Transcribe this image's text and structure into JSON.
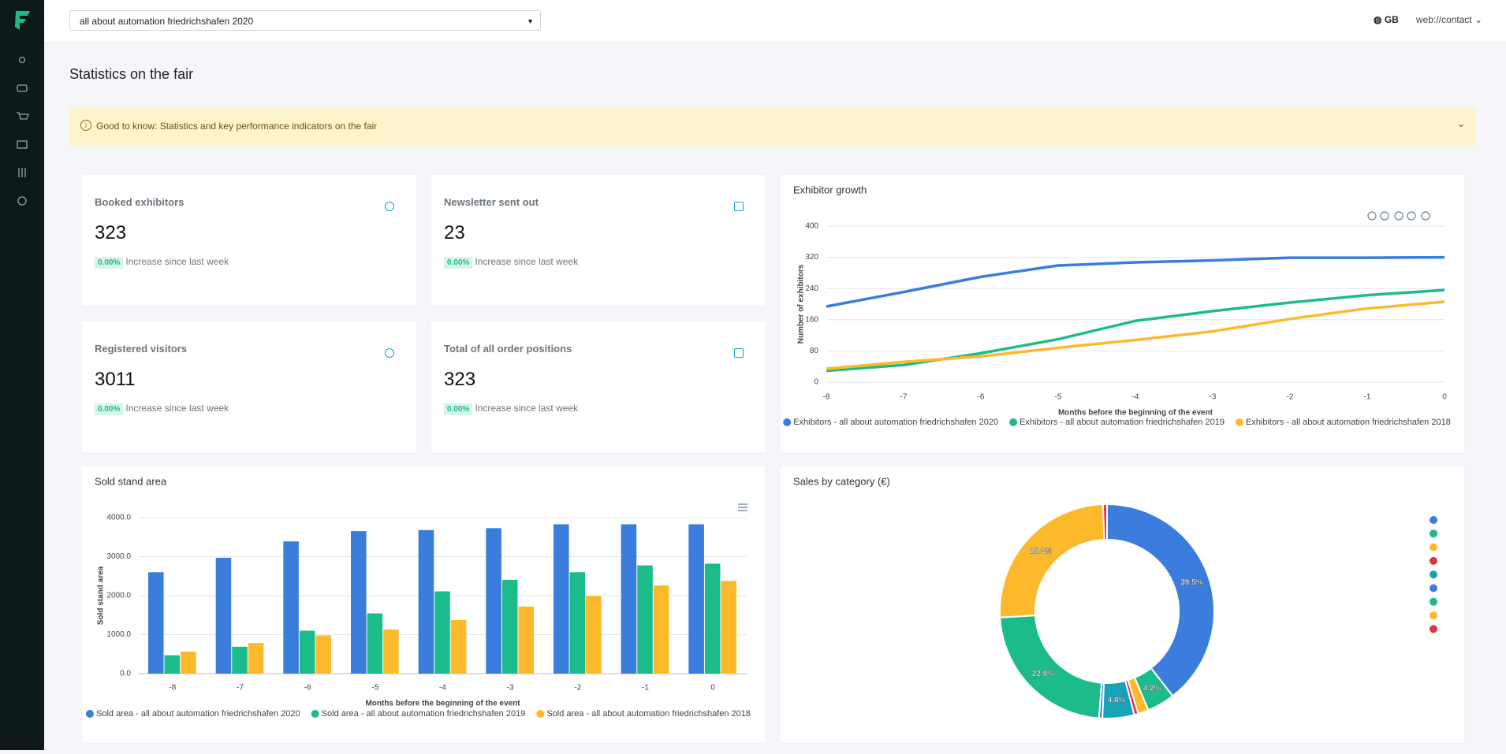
{
  "header": {
    "event_select": "all about automation friedrichshafen 2020",
    "language": "GB",
    "user": "web://contact"
  },
  "page_title": "Statistics on the fair",
  "notice": "Good to know: Statistics and key performance indicators on the fair",
  "kpis": [
    {
      "label": "Booked exhibitors",
      "value": 323,
      "badge": "0.00%",
      "caption": "Increase since last week"
    },
    {
      "label": "Newsletter sent out",
      "value": 23,
      "badge": "0.00%",
      "caption": "Increase since last week"
    },
    {
      "label": "Registered visitors",
      "value": 3011,
      "badge": "0.00%",
      "caption": "Increase since last week"
    },
    {
      "label": "Total of all order positions",
      "value": 323,
      "badge": "0.00%",
      "caption": "Increase since last week"
    }
  ],
  "chart_data": [
    {
      "type": "line",
      "title": "Exhibitor growth",
      "x_label": "Months before the beginning of the event",
      "y_label": "Number of exhibitors",
      "x": [
        -8,
        -7,
        -6,
        -5,
        -4,
        -3,
        -2,
        -1,
        0
      ],
      "xlim": [
        -8,
        0
      ],
      "xticks": [
        -8,
        -7,
        -6,
        -5,
        -4,
        -3,
        -2,
        -1,
        0
      ],
      "ylim": [
        0,
        400
      ],
      "yticks": [
        0,
        80,
        160,
        240,
        320,
        400
      ],
      "grid": true,
      "series": [
        {
          "name": "Exhibitors - all about automation friedrichshafen 2020",
          "color": "#3b7ddd",
          "values": [
            194,
            231,
            270,
            299,
            307,
            312,
            319,
            319,
            320
          ]
        },
        {
          "name": "Exhibitors - all about automation friedrichshafen 2019",
          "color": "#1cbb8c",
          "values": [
            29,
            44,
            74,
            110,
            157,
            182,
            204,
            223,
            236
          ]
        },
        {
          "name": "Exhibitors - all about automation friedrichshafen 2018",
          "color": "#fcb92c",
          "values": [
            34,
            52,
            66,
            88,
            108,
            130,
            162,
            189,
            206
          ]
        }
      ]
    },
    {
      "type": "bar",
      "title": "Sold stand area",
      "x_label": "Months before the beginning of the event",
      "y_label": "Sold stand area",
      "categories": [
        "-8",
        "-7",
        "-6",
        "-5",
        "-4",
        "-3",
        "-2",
        "-1",
        "0"
      ],
      "ylim": [
        0,
        4000
      ],
      "yticks": [
        {
          "value": 0,
          "label": "0.0"
        },
        {
          "value": 1000,
          "label": "1000.0"
        },
        {
          "value": 2000,
          "label": "2000.0"
        },
        {
          "value": 3000,
          "label": "3000.0"
        },
        {
          "value": 4000,
          "label": "4000.0"
        }
      ],
      "grid": true,
      "series": [
        {
          "name": "Sold area - all about automation friedrichshafen 2020",
          "color": "#3b7ddd",
          "values": [
            2600,
            2970,
            3390,
            3655,
            3680,
            3730,
            3830,
            3830,
            3830
          ]
        },
        {
          "name": "Sold area - all about automation friedrichshafen 2019",
          "color": "#1cbb8c",
          "values": [
            470,
            690,
            1100,
            1545,
            2110,
            2405,
            2600,
            2775,
            2820
          ]
        },
        {
          "name": "Sold area - all about automation friedrichshafen 2018",
          "color": "#fcb92c",
          "values": [
            565,
            785,
            980,
            1130,
            1375,
            1720,
            1990,
            2260,
            2380
          ]
        }
      ]
    },
    {
      "type": "donut",
      "title": "Sales by category (€)",
      "categories": [
        null,
        null,
        null,
        null,
        null,
        null,
        null,
        null,
        null
      ],
      "values": [
        39.5,
        4.2,
        1.6,
        0.6,
        4.8,
        0.5,
        22.9,
        25.3,
        0.6
      ],
      "value_labels": [
        "39.5%",
        "4.2%",
        null,
        null,
        "4.8%",
        null,
        "22.9%",
        "25.3%",
        null
      ],
      "colors": [
        "#3b7ddd",
        "#1cbb8c",
        "#fcb92c",
        "#dc3545",
        "#17a2b8",
        "#3b7ddd",
        "#1cbb8c",
        "#fcb92c",
        "#dc3545"
      ]
    }
  ]
}
